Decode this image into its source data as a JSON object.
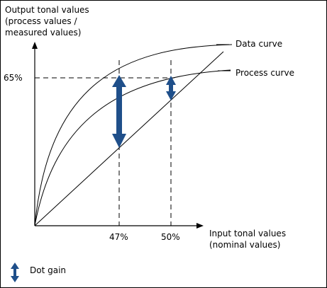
{
  "y_axis_label": [
    "Output tonal values",
    "(process values /",
    "measured values)"
  ],
  "x_axis_label": [
    "Input tonal values",
    "(nominal values)"
  ],
  "y_marker": "65%",
  "x_markers": [
    "47%",
    "50%"
  ],
  "curves": {
    "data_curve": "Data curve",
    "process_curve": "Process curve"
  },
  "legend": {
    "dot_gain": "Dot gain"
  },
  "colors": {
    "arrow": "#1f4f8a",
    "line": "#000000"
  }
}
